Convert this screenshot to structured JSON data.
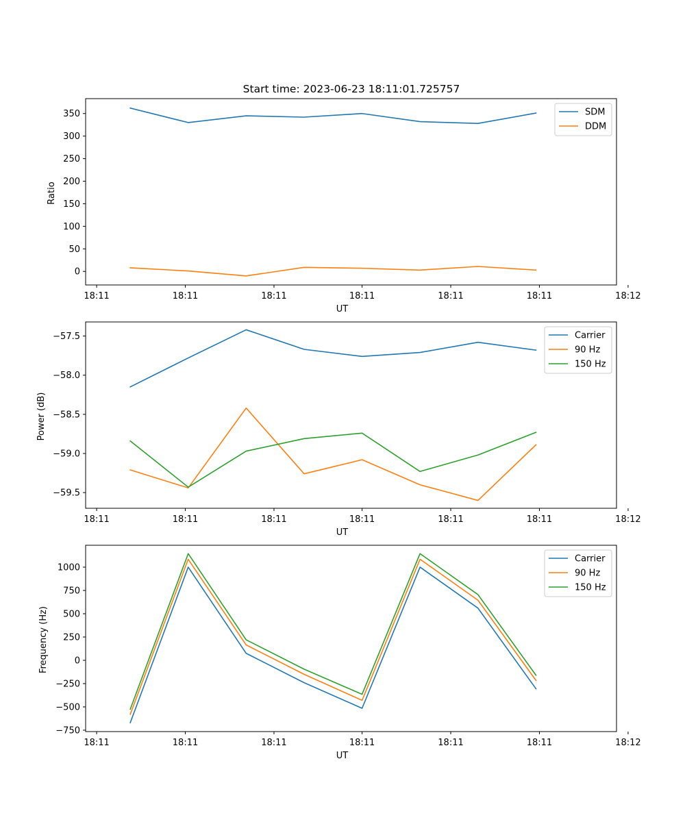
{
  "figure": {
    "title": "Start time: 2023-06-23 18:11:01.725757"
  },
  "chart_data": [
    {
      "type": "line",
      "title": "Start time: 2023-06-23 18:11:01.725757",
      "xlabel": "UT",
      "ylabel": "Ratio",
      "x": [
        0,
        1,
        2,
        3,
        4,
        5,
        6,
        7
      ],
      "xlim": [
        -0.77,
        8.39
      ],
      "x_ticks": [
        {
          "value": -0.58,
          "label": "18:11"
        },
        {
          "value": 0.95,
          "label": "18:11"
        },
        {
          "value": 2.48,
          "label": "18:11"
        },
        {
          "value": 4.0,
          "label": "18:11"
        },
        {
          "value": 5.53,
          "label": "18:11"
        },
        {
          "value": 7.06,
          "label": "18:11"
        },
        {
          "value": 8.59,
          "label": "18:12"
        }
      ],
      "ylim": [
        -30,
        383
      ],
      "y_ticks": [
        0,
        50,
        100,
        150,
        200,
        250,
        300,
        350
      ],
      "legend_position": "top-right",
      "series": [
        {
          "name": "SDM",
          "color": "#1f77b4",
          "values": [
            362,
            330,
            345,
            342,
            350,
            332,
            328,
            351
          ]
        },
        {
          "name": "DDM",
          "color": "#ff7f0e",
          "values": [
            8,
            1,
            -10,
            9,
            7,
            3,
            11,
            3
          ]
        }
      ]
    },
    {
      "type": "line",
      "title": "",
      "xlabel": "UT",
      "ylabel": "Power (dB)",
      "x": [
        0,
        1,
        2,
        3,
        4,
        5,
        6,
        7
      ],
      "xlim": [
        -0.77,
        8.39
      ],
      "x_ticks": [
        {
          "value": -0.58,
          "label": "18:11"
        },
        {
          "value": 0.95,
          "label": "18:11"
        },
        {
          "value": 2.48,
          "label": "18:11"
        },
        {
          "value": 4.0,
          "label": "18:11"
        },
        {
          "value": 5.53,
          "label": "18:11"
        },
        {
          "value": 7.06,
          "label": "18:11"
        },
        {
          "value": 8.59,
          "label": "18:12"
        }
      ],
      "ylim": [
        -59.7,
        -57.32
      ],
      "y_ticks": [
        -59.5,
        -59.0,
        -58.5,
        -58.0,
        -57.5
      ],
      "y_tick_labels": [
        "−59.5",
        "−59.0",
        "−58.5",
        "−58.0",
        "−57.5"
      ],
      "legend_position": "top-right",
      "series": [
        {
          "name": "Carrier",
          "color": "#1f77b4",
          "values": [
            -58.15,
            -57.78,
            -57.42,
            -57.67,
            -57.76,
            -57.71,
            -57.58,
            -57.68
          ]
        },
        {
          "name": "90 Hz",
          "color": "#ff7f0e",
          "values": [
            -59.21,
            -59.44,
            -58.42,
            -59.26,
            -59.08,
            -59.4,
            -59.6,
            -58.89
          ]
        },
        {
          "name": "150 Hz",
          "color": "#2ca02c",
          "values": [
            -58.84,
            -59.43,
            -58.97,
            -58.81,
            -58.74,
            -59.23,
            -59.02,
            -58.73
          ]
        }
      ]
    },
    {
      "type": "line",
      "title": "",
      "xlabel": "UT",
      "ylabel": "Frequency (Hz)",
      "x": [
        0,
        1,
        2,
        3,
        4,
        5,
        6,
        7
      ],
      "xlim": [
        -0.77,
        8.39
      ],
      "x_ticks": [
        {
          "value": -0.58,
          "label": "18:11"
        },
        {
          "value": 0.95,
          "label": "18:11"
        },
        {
          "value": 2.48,
          "label": "18:11"
        },
        {
          "value": 4.0,
          "label": "18:11"
        },
        {
          "value": 5.53,
          "label": "18:11"
        },
        {
          "value": 7.06,
          "label": "18:11"
        },
        {
          "value": 8.59,
          "label": "18:12"
        }
      ],
      "ylim": [
        -765,
        1235
      ],
      "y_ticks": [
        -750,
        -500,
        -250,
        0,
        250,
        500,
        750,
        1000
      ],
      "y_tick_labels": [
        "−750",
        "−500",
        "−250",
        "0",
        "250",
        "500",
        "750",
        "1000"
      ],
      "legend_position": "top-right",
      "series": [
        {
          "name": "Carrier",
          "color": "#1f77b4",
          "values": [
            -670,
            1000,
            75,
            -240,
            -515,
            1000,
            560,
            -305
          ]
        },
        {
          "name": "90 Hz",
          "color": "#ff7f0e",
          "values": [
            -580,
            1085,
            165,
            -150,
            -430,
            1085,
            645,
            -215
          ]
        },
        {
          "name": "150 Hz",
          "color": "#2ca02c",
          "values": [
            -525,
            1145,
            220,
            -95,
            -365,
            1145,
            705,
            -160
          ]
        }
      ]
    }
  ]
}
